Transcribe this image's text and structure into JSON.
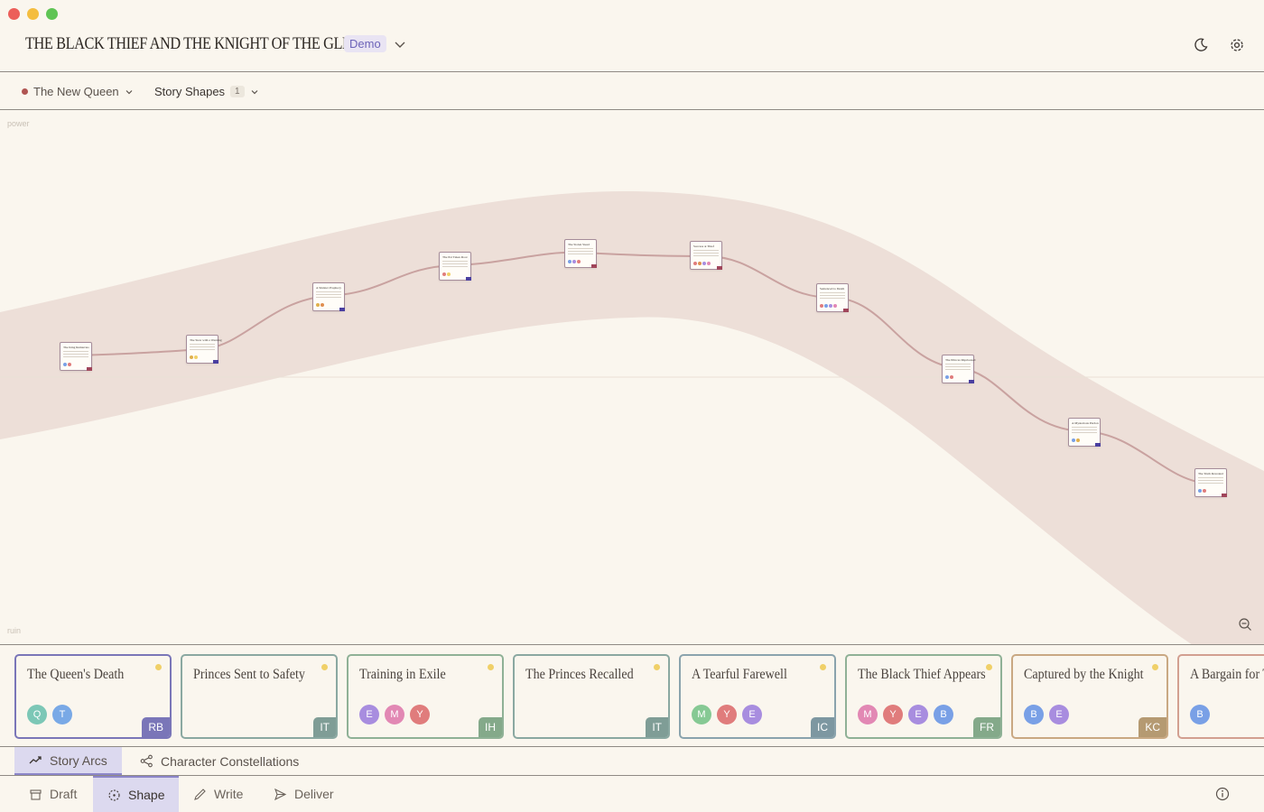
{
  "window": {
    "traffic_lights": [
      "close",
      "minimize",
      "maximize"
    ]
  },
  "header": {
    "title": "THE BLACK THIEF AND THE KNIGHT OF THE GLEN",
    "badge": "Demo",
    "icons": [
      "chevron-down-icon",
      "moon-icon",
      "settings-icon"
    ]
  },
  "subbar": {
    "arc_label": "The New Queen",
    "arc_color": "#b05552",
    "shapes_label": "Story Shapes",
    "shapes_count": "1"
  },
  "canvas": {
    "top_label": "power",
    "bottom_label": "ruin",
    "band_color": "#eddfd8",
    "curve_color": "#c9a2a0"
  },
  "scenes": [
    {
      "title": "The Queen's Death",
      "border": "#7a76b8",
      "avatars": [
        {
          "l": "Q",
          "c": "#7cc7b6"
        },
        {
          "l": "T",
          "c": "#79a9e6"
        }
      ],
      "tag": "RB",
      "tag_color": "#7a76b8",
      "dot": true
    },
    {
      "title": "Princes Sent to Safety",
      "border": "#8aa8a1",
      "avatars": [],
      "tag": "IT",
      "tag_color": "#7f9d96",
      "dot": true
    },
    {
      "title": "Training in Exile",
      "border": "#8fb196",
      "avatars": [
        {
          "l": "E",
          "c": "#a88ddf"
        },
        {
          "l": "M",
          "c": "#e288b4"
        },
        {
          "l": "Y",
          "c": "#e07c7c"
        }
      ],
      "tag": "IH",
      "tag_color": "#84a98a",
      "dot": true
    },
    {
      "title": "The Princes Recalled",
      "border": "#8aa8a1",
      "avatars": [],
      "tag": "IT",
      "tag_color": "#7f9d96",
      "dot": true
    },
    {
      "title": "A Tearful Farewell",
      "border": "#8aa3ad",
      "avatars": [
        {
          "l": "M",
          "c": "#86c994"
        },
        {
          "l": "Y",
          "c": "#e07c7c"
        },
        {
          "l": "E",
          "c": "#a88ddf"
        }
      ],
      "tag": "IC",
      "tag_color": "#7d97a1",
      "dot": true
    },
    {
      "title": "The Black Thief Appears",
      "border": "#8fb196",
      "avatars": [
        {
          "l": "M",
          "c": "#e288b4"
        },
        {
          "l": "Y",
          "c": "#e07c7c"
        },
        {
          "l": "E",
          "c": "#a88ddf"
        },
        {
          "l": "B",
          "c": "#79a0e6"
        }
      ],
      "tag": "FR",
      "tag_color": "#84a98a",
      "dot": true
    },
    {
      "title": "Captured by the Knight",
      "border": "#c9a882",
      "avatars": [
        {
          "l": "B",
          "c": "#79a0e6"
        },
        {
          "l": "E",
          "c": "#a88ddf"
        }
      ],
      "tag": "KC",
      "tag_color": "#b59a72",
      "dot": true
    },
    {
      "title": "A Bargain for T",
      "border": "#d29f90",
      "avatars": [
        {
          "l": "B",
          "c": "#79a0e6"
        }
      ],
      "tag": "",
      "tag_color": "#c48a7a",
      "dot": false
    }
  ],
  "arc_nodes": [
    {
      "title": "The King Remarries",
      "dots": [
        "#79a0e6",
        "#e07c7c"
      ],
      "tag": "#a0455a"
    },
    {
      "title": "The Stew with a Warning",
      "dots": [
        "#e0b04c",
        "#f0d068"
      ],
      "tag": "#4a3fa0"
    },
    {
      "title": "A Sinister Prophecy",
      "dots": [
        "#e0b04c",
        "#e08f50"
      ],
      "tag": "#4a3fa0"
    },
    {
      "title": "The Pot Takes Root",
      "dots": [
        "#e07c7c",
        "#f0d068"
      ],
      "tag": "#4a3fa0"
    },
    {
      "title": "The Stolen Steed",
      "dots": [
        "#79a0e6",
        "#a88ddf",
        "#e07c7c"
      ],
      "tag": "#a0455a"
    },
    {
      "title": "Success at Thief",
      "dots": [
        "#e07c7c",
        "#e08f50",
        "#a88ddf",
        "#e288b4"
      ],
      "tag": "#a0455a"
    },
    {
      "title": "Sentenced to Death",
      "dots": [
        "#e07c7c",
        "#79a0e6",
        "#a88ddf",
        "#e288b4"
      ],
      "tag": "#a0455a"
    },
    {
      "title": "The Princes Imprisoned",
      "dots": [
        "#79a0e6",
        "#e07c7c"
      ],
      "tag": "#4a3fa0"
    },
    {
      "title": "A Mysterious Pardon",
      "dots": [
        "#79a0e6",
        "#e0b04c"
      ],
      "tag": "#4a3fa0"
    },
    {
      "title": "The Truth Revealed",
      "dots": [
        "#79a0e6",
        "#e07c7c"
      ],
      "tag": "#a0455a"
    }
  ],
  "view_tabs": [
    {
      "label": "Story Arcs",
      "icon": "trend-icon",
      "active": true
    },
    {
      "label": "Character Constellations",
      "icon": "share-icon",
      "active": false
    }
  ],
  "mode_tabs": [
    {
      "label": "Draft",
      "icon": "archive-icon",
      "active": false
    },
    {
      "label": "Shape",
      "icon": "shape-icon",
      "active": true
    },
    {
      "label": "Write",
      "icon": "pencil-icon",
      "active": false
    },
    {
      "label": "Deliver",
      "icon": "send-icon",
      "active": false
    }
  ]
}
